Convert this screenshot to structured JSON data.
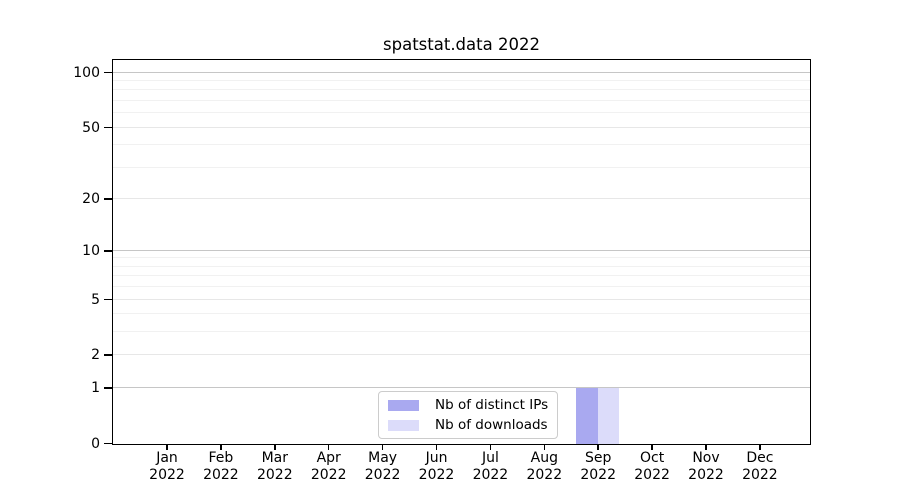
{
  "title": "spatstat.data 2022",
  "chart_data": {
    "type": "bar",
    "title": "spatstat.data 2022",
    "categories": [
      "Jan",
      "Feb",
      "Mar",
      "Apr",
      "May",
      "Jun",
      "Jul",
      "Aug",
      "Sep",
      "Oct",
      "Nov",
      "Dec"
    ],
    "category_year": "2022",
    "series": [
      {
        "name": "Nb of distinct IPs",
        "color": "#a9a9f0",
        "values": [
          0,
          0,
          0,
          0,
          0,
          0,
          0,
          0,
          1,
          0,
          0,
          0
        ]
      },
      {
        "name": "Nb of downloads",
        "color": "#dcdcfa",
        "values": [
          0,
          0,
          0,
          0,
          0,
          0,
          0,
          0,
          1,
          0,
          0,
          0
        ]
      }
    ],
    "xlabel": "",
    "ylabel": "",
    "y_scale": "log1p",
    "y_ticks": [
      0,
      1,
      2,
      5,
      10,
      20,
      50,
      100
    ],
    "y_minor_ticks": [
      3,
      4,
      6,
      7,
      8,
      9,
      30,
      40,
      60,
      70,
      80,
      90
    ],
    "ylim": [
      0,
      115
    ],
    "grid": "horizontal",
    "grid_color_major_decade": "#c6c6c6",
    "grid_color_major_other": "#e7e7e7",
    "grid_color_minor": "#f1f1f1",
    "legend_position": "inside-bottom-center",
    "axis_color": "#000000"
  }
}
